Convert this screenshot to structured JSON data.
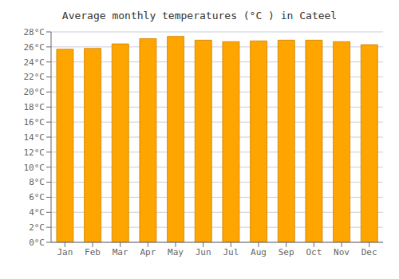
{
  "chart_data": {
    "type": "bar",
    "title": "Average monthly temperatures (°C ) in Cateel",
    "categories": [
      "Jan",
      "Feb",
      "Mar",
      "Apr",
      "May",
      "Jun",
      "Jul",
      "Aug",
      "Sep",
      "Oct",
      "Nov",
      "Dec"
    ],
    "values": [
      25.7,
      25.8,
      26.4,
      27.1,
      27.4,
      26.9,
      26.7,
      26.8,
      26.9,
      26.9,
      26.7,
      26.3
    ],
    "color": "#FFA500",
    "ylim": [
      0,
      28
    ],
    "yticks": [
      {
        "value": 0,
        "label": "0°C"
      },
      {
        "value": 2,
        "label": "2°C"
      },
      {
        "value": 4,
        "label": "4°C"
      },
      {
        "value": 6,
        "label": "6°C"
      },
      {
        "value": 8,
        "label": "8°C"
      },
      {
        "value": 10,
        "label": "10°C"
      },
      {
        "value": 12,
        "label": "12°C"
      },
      {
        "value": 14,
        "label": "14°C"
      },
      {
        "value": 16,
        "label": "16°C"
      },
      {
        "value": 18,
        "label": "18°C"
      },
      {
        "value": 20,
        "label": "20°C"
      },
      {
        "value": 22,
        "label": "22°C"
      },
      {
        "value": 24,
        "label": "24°C"
      },
      {
        "value": 26,
        "label": "26°C"
      },
      {
        "value": 28,
        "label": "28°C"
      }
    ],
    "grid": true
  }
}
